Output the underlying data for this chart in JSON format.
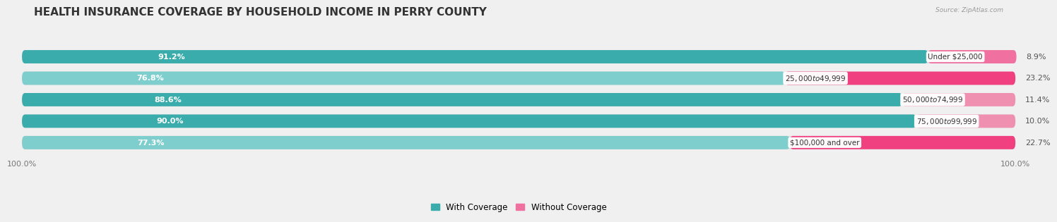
{
  "title": "HEALTH INSURANCE COVERAGE BY HOUSEHOLD INCOME IN PERRY COUNTY",
  "source": "Source: ZipAtlas.com",
  "categories": [
    "Under $25,000",
    "$25,000 to $49,999",
    "$50,000 to $74,999",
    "$75,000 to $99,999",
    "$100,000 and over"
  ],
  "with_coverage": [
    91.2,
    76.8,
    88.6,
    90.0,
    77.3
  ],
  "without_coverage": [
    8.9,
    23.2,
    11.4,
    10.0,
    22.7
  ],
  "color_with_1": "#3BBCBC",
  "color_with_2": "#7DD4D4",
  "color_without_1": "#F06090",
  "color_without_2": "#F8A8C0",
  "bg_color": "#f0f0f0",
  "bar_bg": "#dcdcdc",
  "title_fontsize": 11,
  "label_fontsize": 8,
  "tick_fontsize": 8,
  "legend_fontsize": 8.5,
  "x_left_label": "100.0%",
  "x_right_label": "100.0%",
  "colors_with": [
    "#3AACAC",
    "#7ECECE",
    "#3AACAC",
    "#3AACAC",
    "#7ECECE"
  ],
  "colors_without": [
    "#F070A0",
    "#F04080",
    "#F090B0",
    "#F090B0",
    "#F04080"
  ]
}
